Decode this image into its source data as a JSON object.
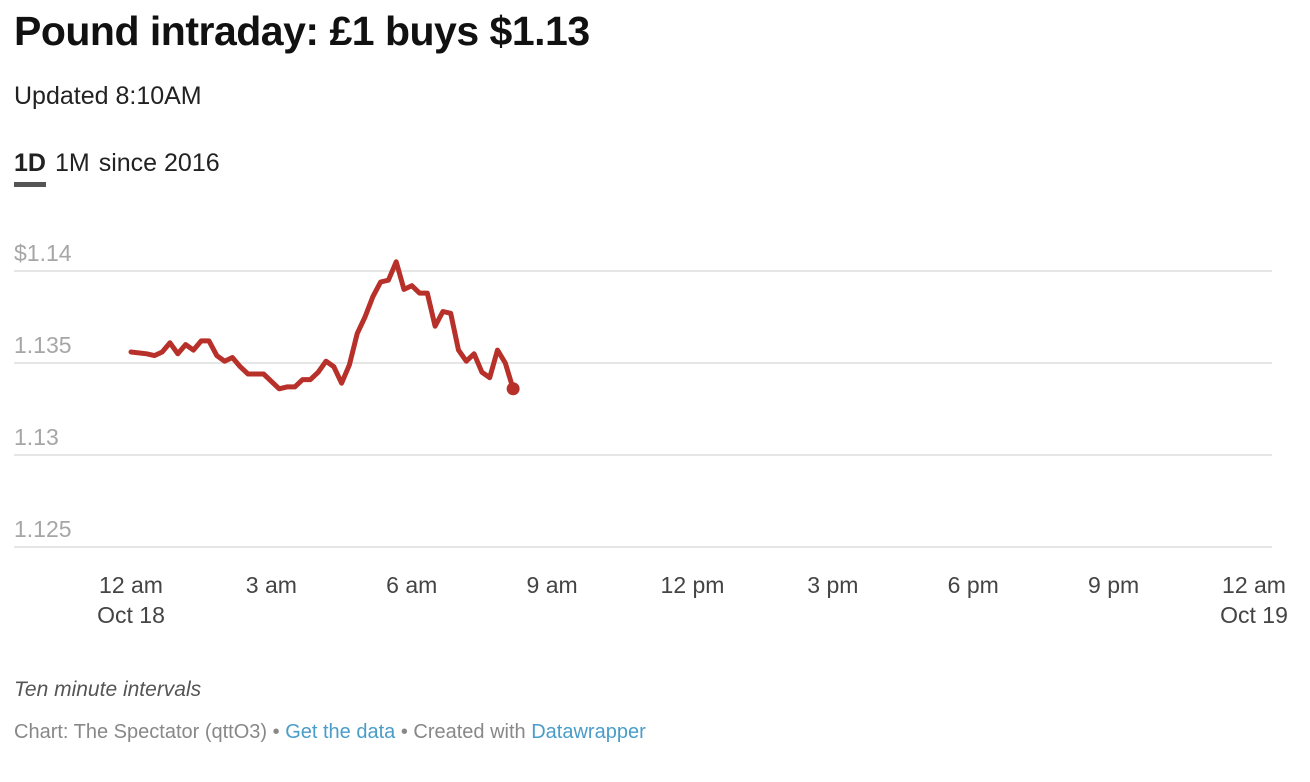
{
  "header": {
    "title": "Pound intraday: £1 buys $1.13",
    "subtitle": "Updated 8:10AM"
  },
  "tabs": [
    {
      "label": "1D",
      "active": true
    },
    {
      "label": "1M",
      "active": false
    },
    {
      "label": "since 2016",
      "active": false
    }
  ],
  "chart_data": {
    "type": "line",
    "y_tick_labels": [
      "$1.14",
      "1.135",
      "1.13",
      "1.125"
    ],
    "y_ticks": [
      1.14,
      1.135,
      1.13,
      1.125
    ],
    "ylim": [
      1.125,
      1.14
    ],
    "x_ticks": [
      {
        "hours": 0,
        "line1": "12 am",
        "line2": "Oct 18"
      },
      {
        "hours": 3,
        "line1": "3 am",
        "line2": ""
      },
      {
        "hours": 6,
        "line1": "6 am",
        "line2": ""
      },
      {
        "hours": 9,
        "line1": "9 am",
        "line2": ""
      },
      {
        "hours": 12,
        "line1": "12 pm",
        "line2": ""
      },
      {
        "hours": 15,
        "line1": "3 pm",
        "line2": ""
      },
      {
        "hours": 18,
        "line1": "6 pm",
        "line2": ""
      },
      {
        "hours": 21,
        "line1": "9 pm",
        "line2": ""
      },
      {
        "hours": 24,
        "line1": "12 am",
        "line2": "Oct 19"
      }
    ],
    "xlim": [
      0,
      24
    ],
    "grid": true,
    "line_color": "#b8302a",
    "series": [
      {
        "x": [
          "00:00",
          "00:20",
          "00:30",
          "00:40",
          "00:50",
          "01:00",
          "01:10",
          "01:20",
          "01:30",
          "01:40",
          "01:50",
          "02:00",
          "02:10",
          "02:20",
          "02:30",
          "02:40",
          "02:50",
          "03:00",
          "03:10",
          "03:20",
          "03:30",
          "03:40",
          "03:50",
          "04:00",
          "04:10",
          "04:20",
          "04:30",
          "04:40",
          "04:50",
          "05:00",
          "05:10",
          "05:20",
          "05:30",
          "05:40",
          "05:50",
          "06:00",
          "06:10",
          "06:20",
          "06:30",
          "06:40",
          "06:50",
          "07:00",
          "07:10",
          "07:20",
          "07:30",
          "07:40",
          "07:50",
          "08:00",
          "08:10"
        ],
        "y": [
          1.1356,
          1.1355,
          1.1354,
          1.1356,
          1.1361,
          1.1355,
          1.136,
          1.1357,
          1.1362,
          1.1362,
          1.1354,
          1.1351,
          1.1353,
          1.1348,
          1.1344,
          1.1344,
          1.1344,
          1.134,
          1.1336,
          1.1337,
          1.1337,
          1.1341,
          1.1341,
          1.1345,
          1.1351,
          1.1348,
          1.1339,
          1.1349,
          1.1366,
          1.1375,
          1.1386,
          1.1394,
          1.1395,
          1.1405,
          1.139,
          1.1392,
          1.1388,
          1.1388,
          1.137,
          1.1378,
          1.1377,
          1.1357,
          1.1351,
          1.1355,
          1.1345,
          1.1342,
          1.1357,
          1.135,
          1.1336
        ]
      }
    ]
  },
  "notes": "Ten minute intervals",
  "footer": {
    "prefix": "Chart: The Spectator (qttO3) • ",
    "get_data_label": "Get the data",
    "middle": " • Created with ",
    "datawrapper_label": "Datawrapper"
  }
}
